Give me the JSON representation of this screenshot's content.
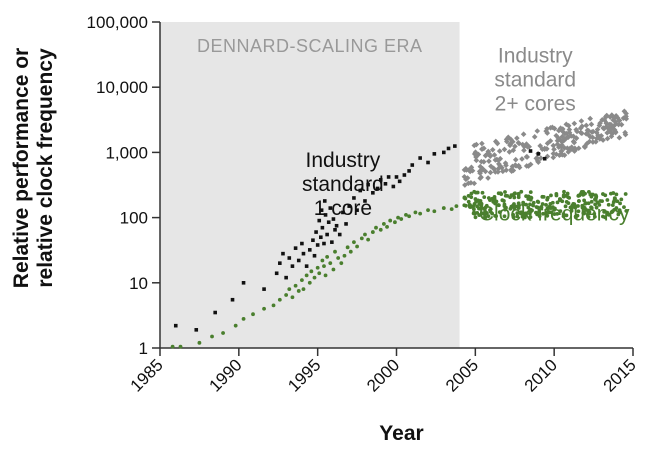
{
  "chart_data": {
    "type": "scatter",
    "title": "",
    "xlabel": "Year",
    "ylabel_lines": [
      "Relative performance or",
      "relative clock frequency"
    ],
    "y_scale": "log",
    "xlim": [
      1985,
      2015
    ],
    "ylim": [
      1,
      100000
    ],
    "x_ticks": [
      1985,
      1990,
      1995,
      2000,
      2005,
      2010,
      2015
    ],
    "x_tick_labels": [
      "1985",
      "1990",
      "1995",
      "2000",
      "2005",
      "2010",
      "2015"
    ],
    "y_ticks": [
      1,
      10,
      100,
      1000,
      10000,
      100000
    ],
    "y_tick_labels": [
      "1",
      "10",
      "100",
      "1,000",
      "10,000",
      "100,000"
    ],
    "era": {
      "label": "DENNARD-SCALING ERA",
      "x_start": 1985,
      "x_end": 2004,
      "color": "#e6e6e6",
      "text_color": "#999999"
    },
    "annotations": [
      {
        "lines": [
          "Industry",
          "standard",
          "1 core"
        ],
        "x": 1996.6,
        "y": 600,
        "color": "#111111",
        "series": "single-core"
      },
      {
        "lines": [
          "Industry",
          "standard",
          "2+ cores"
        ],
        "x": 2008.8,
        "y": 24000,
        "color": "#8a8a8a",
        "series": "multi-core"
      },
      {
        "lines": [
          "Clock frequency"
        ],
        "x": 2010.0,
        "y": 90,
        "color": "#4a7f2e",
        "series": "clock"
      }
    ],
    "series": [
      {
        "name": "Industry standard 1 core",
        "color": "#111111",
        "marker": "square",
        "points": [
          [
            1986,
            2.2
          ],
          [
            1987.3,
            1.9
          ],
          [
            1988.5,
            3.5
          ],
          [
            1989.6,
            5.5
          ],
          [
            1990.3,
            10
          ],
          [
            1991.6,
            8
          ],
          [
            1992.4,
            14
          ],
          [
            1992.6,
            20
          ],
          [
            1992.8,
            28
          ],
          [
            1993,
            12
          ],
          [
            1993.2,
            24
          ],
          [
            1993.4,
            18
          ],
          [
            1993.6,
            34
          ],
          [
            1993.8,
            22
          ],
          [
            1994,
            40
          ],
          [
            1994.1,
            28
          ],
          [
            1994.3,
            18
          ],
          [
            1994.5,
            32
          ],
          [
            1994.7,
            45
          ],
          [
            1994.8,
            26
          ],
          [
            1994.9,
            60
          ],
          [
            1995,
            38
          ],
          [
            1995.1,
            90
          ],
          [
            1995.2,
            50
          ],
          [
            1995.25,
            130
          ],
          [
            1995.3,
            70
          ],
          [
            1995.4,
            40
          ],
          [
            1995.45,
            180
          ],
          [
            1995.5,
            110
          ],
          [
            1995.6,
            55
          ],
          [
            1995.7,
            85
          ],
          [
            1995.8,
            140
          ],
          [
            1995.9,
            42
          ],
          [
            1996,
            95
          ],
          [
            1996.1,
            65
          ],
          [
            1996.2,
            75
          ],
          [
            1996.4,
            55
          ],
          [
            1996.6,
            120
          ],
          [
            1996.8,
            80
          ],
          [
            1997,
            150
          ],
          [
            1997.3,
            200
          ],
          [
            1997.5,
            130
          ],
          [
            1997.7,
            260
          ],
          [
            1998,
            180
          ],
          [
            1998.2,
            320
          ],
          [
            1998.5,
            240
          ],
          [
            1998.8,
            280
          ],
          [
            1999,
            380
          ],
          [
            1999.3,
            330
          ],
          [
            1999.5,
            420
          ],
          [
            1999.8,
            300
          ],
          [
            2000,
            420
          ],
          [
            2000.2,
            360
          ],
          [
            2000.5,
            450
          ],
          [
            2000.8,
            520
          ],
          [
            2001,
            640
          ],
          [
            2001.5,
            820
          ],
          [
            2002,
            700
          ],
          [
            2002.4,
            950
          ],
          [
            2003,
            1000
          ],
          [
            2003.3,
            1150
          ],
          [
            2003.7,
            1250
          ],
          [
            2008.5,
            1050
          ],
          [
            2009,
            950
          ],
          [
            2009.4,
            800
          ]
        ]
      },
      {
        "name": "Clock frequency",
        "color": "#4a7f2e",
        "marker": "dot",
        "points": [
          [
            1985.8,
            1.05
          ],
          [
            1986.3,
            1.05
          ],
          [
            1987.5,
            1.2
          ],
          [
            1988.3,
            1.5
          ],
          [
            1989,
            1.7
          ],
          [
            1989.8,
            2.2
          ],
          [
            1990.3,
            2.8
          ],
          [
            1990.9,
            3.3
          ],
          [
            1991.6,
            4
          ],
          [
            1992.2,
            4.5
          ],
          [
            1992.6,
            5.5
          ],
          [
            1993,
            6.5
          ],
          [
            1993.2,
            8
          ],
          [
            1993.4,
            6
          ],
          [
            1993.6,
            9
          ],
          [
            1993.8,
            7.5
          ],
          [
            1994,
            11
          ],
          [
            1994.1,
            8
          ],
          [
            1994.3,
            13
          ],
          [
            1994.5,
            10
          ],
          [
            1994.6,
            15
          ],
          [
            1994.8,
            12
          ],
          [
            1995,
            17
          ],
          [
            1995.1,
            14
          ],
          [
            1995.3,
            22
          ],
          [
            1995.4,
            18
          ],
          [
            1995.5,
            13
          ],
          [
            1995.6,
            25
          ],
          [
            1995.8,
            20
          ],
          [
            1996,
            16
          ],
          [
            1996.1,
            30
          ],
          [
            1996.3,
            24
          ],
          [
            1996.5,
            20
          ],
          [
            1996.7,
            26
          ],
          [
            1996.9,
            35
          ],
          [
            1997.1,
            30
          ],
          [
            1997.3,
            42
          ],
          [
            1997.5,
            36
          ],
          [
            1997.8,
            48
          ],
          [
            1998,
            55
          ],
          [
            1998.2,
            46
          ],
          [
            1998.5,
            60
          ],
          [
            1998.7,
            70
          ],
          [
            1999,
            65
          ],
          [
            1999.2,
            80
          ],
          [
            1999.4,
            72
          ],
          [
            1999.6,
            90
          ],
          [
            1999.9,
            85
          ],
          [
            2000.1,
            100
          ],
          [
            2000.3,
            95
          ],
          [
            2000.6,
            110
          ],
          [
            2000.8,
            105
          ],
          [
            2001.2,
            120
          ],
          [
            2001.5,
            115
          ],
          [
            2002,
            130
          ],
          [
            2002.4,
            125
          ],
          [
            2003,
            140
          ],
          [
            2003.5,
            135
          ],
          [
            2003.8,
            150
          ]
        ]
      }
    ],
    "clusters": [
      {
        "name": "Industry standard 2+ cores",
        "color": "#8a8a8a",
        "marker": "diamond",
        "x_range": [
          2004.3,
          2014.6
        ],
        "y_start": [
          300,
          1200
        ],
        "y_end": [
          1800,
          4500
        ],
        "count": 260
      },
      {
        "name": "Clock frequency (2005-2015)",
        "color": "#4a7f2e",
        "marker": "dot",
        "x_range": [
          2004.3,
          2014.6
        ],
        "y_range": [
          100,
          250
        ],
        "count": 280
      }
    ]
  }
}
